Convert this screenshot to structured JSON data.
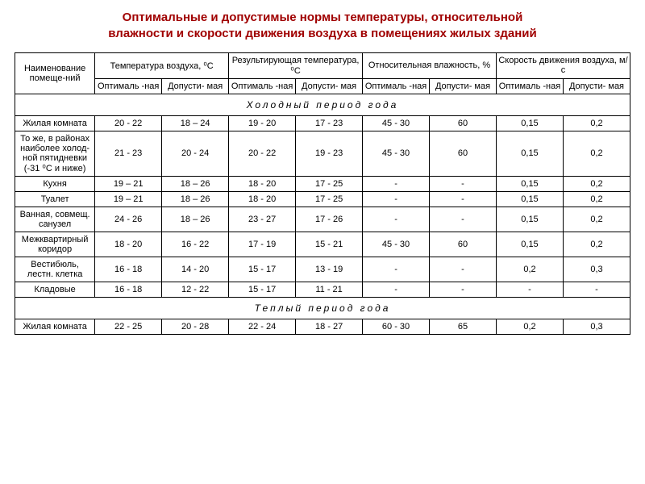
{
  "title_color": "#A00000",
  "title_line1": "Оптимальные и допустимые нормы температуры, относительной",
  "title_line2": "влажности и скорости движения воздуха в помещениях жилых зданий",
  "headers": {
    "name": "Наименование помеще-ний",
    "g1": "Температура воздуха, ⁰С",
    "g2": "Результирующая температура, ⁰С",
    "g3": "Относительная влажность, %",
    "g4": "Скорость движения воздуха, м/с",
    "opt": "Оптималь -ная",
    "dop": "Допусти- мая"
  },
  "sections": {
    "cold": "Холодный период года",
    "warm": "Теплый период года"
  },
  "cold_rows": [
    {
      "n": "Жилая комната",
      "v": [
        "20 - 22",
        "18 – 24",
        "19 - 20",
        "17 - 23",
        "45 - 30",
        "60",
        "0,15",
        "0,2"
      ]
    },
    {
      "n": "То же, в районах наиболее холод- ной пятидневки (-31 ⁰С и ниже)",
      "v": [
        "21 - 23",
        "20 - 24",
        "20 - 22",
        "19 - 23",
        "45 - 30",
        "60",
        "0,15",
        "0,2"
      ]
    },
    {
      "n": "Кухня",
      "v": [
        "19 – 21",
        "18 – 26",
        "18 - 20",
        "17 - 25",
        "-",
        "-",
        "0,15",
        "0,2"
      ]
    },
    {
      "n": "Туалет",
      "v": [
        "19 – 21",
        "18 – 26",
        "18 - 20",
        "17 - 25",
        "-",
        "-",
        "0,15",
        "0,2"
      ]
    },
    {
      "n": "Ванная, совмещ. санузел",
      "v": [
        "24 - 26",
        "18 – 26",
        "23 - 27",
        "17 - 26",
        "-",
        "-",
        "0,15",
        "0,2"
      ]
    },
    {
      "n": "Межквартирный коридор",
      "v": [
        "18 - 20",
        "16 - 22",
        "17 - 19",
        "15 - 21",
        "45 - 30",
        "60",
        "0,15",
        "0,2"
      ]
    },
    {
      "n": "Вестибюль, лестн. клетка",
      "v": [
        "16 - 18",
        "14 - 20",
        "15 - 17",
        "13 - 19",
        "-",
        "-",
        "0,2",
        "0,3"
      ]
    },
    {
      "n": "Кладовые",
      "v": [
        "16 - 18",
        "12 - 22",
        "15 - 17",
        "11 - 21",
        "-",
        "-",
        "-",
        "-"
      ]
    }
  ],
  "warm_rows": [
    {
      "n": "Жилая комната",
      "v": [
        "22 - 25",
        "20 - 28",
        "22 - 24",
        "18 - 27",
        "60 - 30",
        "65",
        "0,2",
        "0,3"
      ]
    }
  ]
}
